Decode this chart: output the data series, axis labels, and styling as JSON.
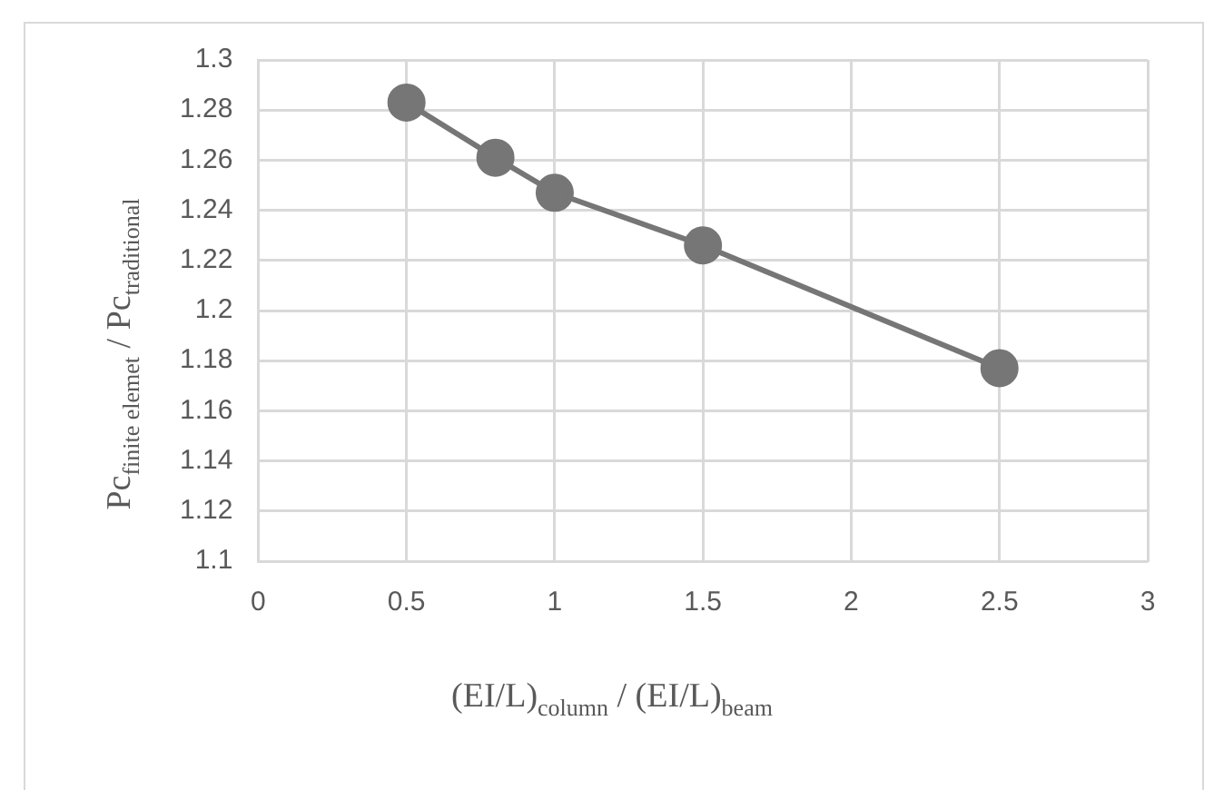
{
  "chart_data": {
    "type": "line",
    "xlabel": "(EI/L)$_{column}$ / (EI/L)$_{beam}$",
    "ylabel": "Pc$_{finite elemet}$ / Pc$_{traditional}$",
    "x": [
      0.5,
      0.8,
      1,
      1.5,
      2.5
    ],
    "series": [
      {
        "color": "#767676",
        "values": [
          1.283,
          1.261,
          1.247,
          1.226,
          1.177
        ]
      }
    ],
    "xlim": [
      0,
      3
    ],
    "xticks": [
      0,
      0.5,
      1,
      1.5,
      2,
      2.5,
      3
    ],
    "ylim": [
      1.1,
      1.3
    ],
    "yticks": [
      1.1,
      1.12,
      1.14,
      1.16,
      1.18,
      1.2,
      1.22,
      1.24,
      1.26,
      1.28,
      1.3
    ],
    "grid": true,
    "legend": false,
    "marker": "circle",
    "line_style": "solid"
  }
}
